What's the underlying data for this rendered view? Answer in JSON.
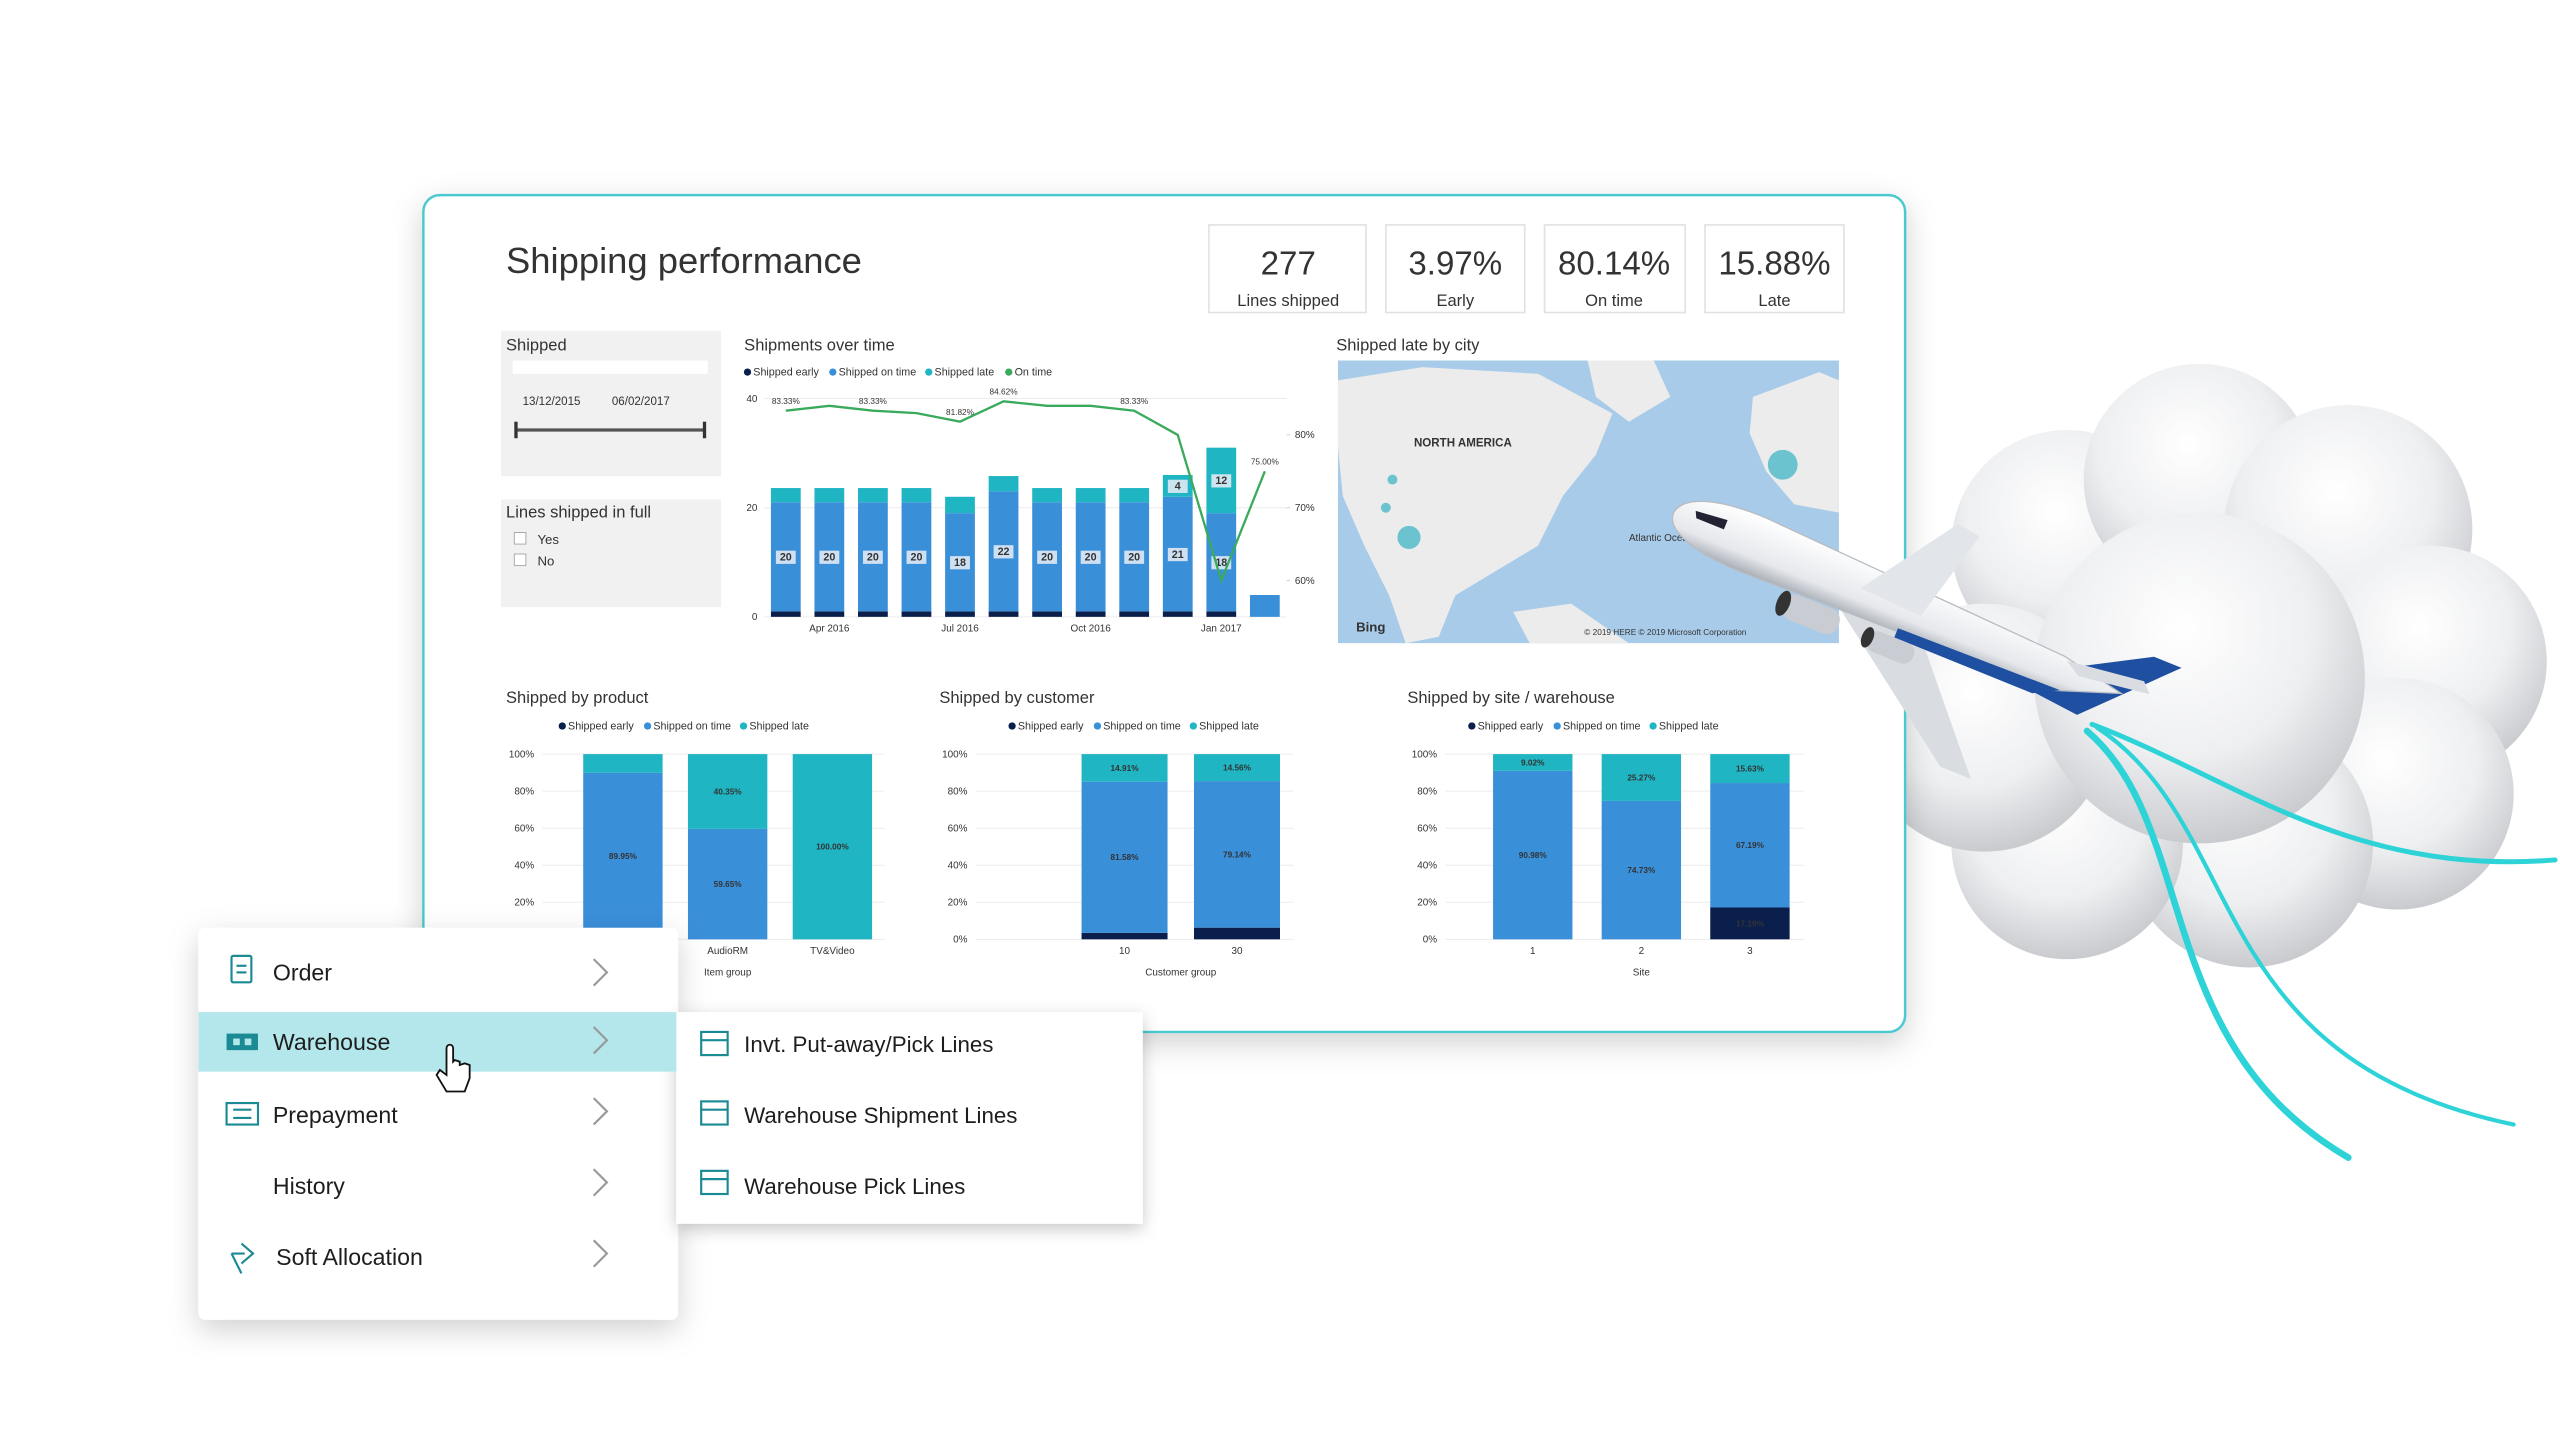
{
  "dashboard": {
    "title": "Shipping performance",
    "kpis": [
      {
        "value": "277",
        "label": "Lines shipped"
      },
      {
        "value": "3.97%",
        "label": "Early"
      },
      {
        "value": "80.14%",
        "label": "On time"
      },
      {
        "value": "15.88%",
        "label": "Late"
      }
    ],
    "filters": {
      "shipped": {
        "title": "Shipped",
        "start": "13/12/2015",
        "end": "06/02/2017"
      },
      "lines_in_full": {
        "title": "Lines shipped in full",
        "options": [
          "Yes",
          "No"
        ]
      }
    },
    "map": {
      "title": "Shipped late by city",
      "region": "NORTH AMERICA",
      "ocean": "Atlantic Ocean",
      "logo": "Bing",
      "attribution": "© 2019 HERE © 2019 Microsoft Corporation"
    },
    "charts": [
      {
        "type": "bar",
        "stacked": true,
        "title": "Shipments over time",
        "categories": [
          null,
          "Apr 2016",
          null,
          null,
          "Jul 2016",
          null,
          null,
          "Oct 2016",
          null,
          null,
          "Jan 2017",
          null
        ],
        "ylim": [
          0,
          40
        ],
        "yticks": [
          0,
          20,
          40
        ],
        "y2lim": [
          55,
          85
        ],
        "y2ticks": [
          {
            "value": 60,
            "label": "60%"
          },
          {
            "value": 70,
            "label": "70%"
          },
          {
            "value": 80,
            "label": "80%"
          }
        ],
        "series": [
          {
            "name": "Shipped early",
            "color": "#0b1f4d",
            "values": [
              1,
              1,
              1,
              1,
              1,
              1,
              1,
              1,
              1,
              1,
              1,
              0
            ]
          },
          {
            "name": "Shipped on time",
            "color": "#3a8fd9",
            "values": [
              20,
              20,
              20,
              20,
              18,
              22,
              20,
              20,
              20,
              21,
              18,
              4
            ],
            "value_labels": [
              "20",
              "20",
              "20",
              "20",
              "18",
              "22",
              "20",
              "20",
              "20",
              "21",
              "18",
              null
            ]
          },
          {
            "name": "Shipped late",
            "color": "#1fb5c2",
            "values": [
              2.6,
              2.6,
              2.6,
              2.6,
              3,
              2.8,
              2.6,
              2.6,
              2.6,
              4,
              12,
              0
            ],
            "value_labels": [
              null,
              null,
              null,
              null,
              null,
              null,
              null,
              null,
              null,
              "4",
              "12",
              null
            ]
          },
          {
            "name": "On time",
            "color": "#3aaa5c",
            "type": "line",
            "axis": "y2",
            "values": [
              83.33,
              84,
              83.33,
              83,
              81.82,
              84.62,
              84,
              84,
              83.33,
              80,
              60,
              75
            ],
            "value_labels": [
              "83.33%",
              null,
              "83.33%",
              null,
              "81.82%",
              "84.62%",
              null,
              null,
              "83.33%",
              null,
              null,
              "75.00%"
            ]
          }
        ]
      },
      {
        "type": "bar",
        "stacked": true,
        "title": "Shipped by product",
        "x_label": "Item group",
        "categories": [
          null,
          "AudioRM",
          "TV&Video"
        ],
        "ylim": [
          0,
          100
        ],
        "yticks": [
          {
            "value": 0,
            "label": "0%"
          },
          {
            "value": 20,
            "label": "20%"
          },
          {
            "value": 40,
            "label": "40%"
          },
          {
            "value": 60,
            "label": "60%"
          },
          {
            "value": 80,
            "label": "80%"
          },
          {
            "value": 100,
            "label": "100%"
          }
        ],
        "series": [
          {
            "name": "Shipped early",
            "color": "#0b1f4d",
            "values": [
              0,
              0,
              0
            ],
            "value_labels": [
              null,
              null,
              null
            ]
          },
          {
            "name": "Shipped on time",
            "color": "#3a8fd9",
            "values": [
              89.95,
              59.65,
              0
            ],
            "value_labels": [
              "89.95%",
              "59.65%",
              null
            ]
          },
          {
            "name": "Shipped late",
            "color": "#1fb5c2",
            "values": [
              10.05,
              40.35,
              100
            ],
            "value_labels": [
              null,
              "40.35%",
              "100.00%"
            ]
          }
        ]
      },
      {
        "type": "bar",
        "stacked": true,
        "title": "Shipped by customer",
        "x_label": "Customer group",
        "categories": [
          "10",
          "30"
        ],
        "ylim": [
          0,
          100
        ],
        "yticks": [
          {
            "value": 0,
            "label": "0%"
          },
          {
            "value": 20,
            "label": "20%"
          },
          {
            "value": 40,
            "label": "40%"
          },
          {
            "value": 60,
            "label": "60%"
          },
          {
            "value": 80,
            "label": "80%"
          },
          {
            "value": 100,
            "label": "100%"
          }
        ],
        "series": [
          {
            "name": "Shipped early",
            "color": "#0b1f4d",
            "values": [
              3.51,
              6.3
            ],
            "value_labels": [
              null,
              null
            ]
          },
          {
            "name": "Shipped on time",
            "color": "#3a8fd9",
            "values": [
              81.58,
              79.14
            ],
            "value_labels": [
              "81.58%",
              "79.14%"
            ]
          },
          {
            "name": "Shipped late",
            "color": "#1fb5c2",
            "values": [
              14.91,
              14.56
            ],
            "value_labels": [
              "14.91%",
              "14.56%"
            ]
          }
        ]
      },
      {
        "type": "bar",
        "stacked": true,
        "title": "Shipped by site / warehouse",
        "x_label": "Site",
        "categories": [
          "1",
          "2",
          "3"
        ],
        "ylim": [
          0,
          100
        ],
        "yticks": [
          {
            "value": 0,
            "label": "0%"
          },
          {
            "value": 20,
            "label": "20%"
          },
          {
            "value": 40,
            "label": "40%"
          },
          {
            "value": 60,
            "label": "60%"
          },
          {
            "value": 80,
            "label": "80%"
          },
          {
            "value": 100,
            "label": "100%"
          }
        ],
        "series": [
          {
            "name": "Shipped early",
            "color": "#0b1f4d",
            "values": [
              0,
              0,
              17.19
            ],
            "value_labels": [
              null,
              null,
              "17.19%"
            ]
          },
          {
            "name": "Shipped on time",
            "color": "#3a8fd9",
            "values": [
              90.98,
              74.73,
              67.19
            ],
            "value_labels": [
              "90.98%",
              "74.73%",
              "67.19%"
            ]
          },
          {
            "name": "Shipped late",
            "color": "#1fb5c2",
            "values": [
              9.02,
              25.27,
              15.63
            ],
            "value_labels": [
              "9.02%",
              "25.27%",
              "15.63%"
            ]
          }
        ]
      }
    ]
  },
  "menu": {
    "items": [
      "Order",
      "Warehouse",
      "Prepayment",
      "History",
      "Soft Allocation"
    ]
  },
  "submenu": {
    "items": [
      "Invt. Put-away/Pick Lines",
      "Warehouse Shipment Lines",
      "Warehouse Pick Lines"
    ]
  }
}
